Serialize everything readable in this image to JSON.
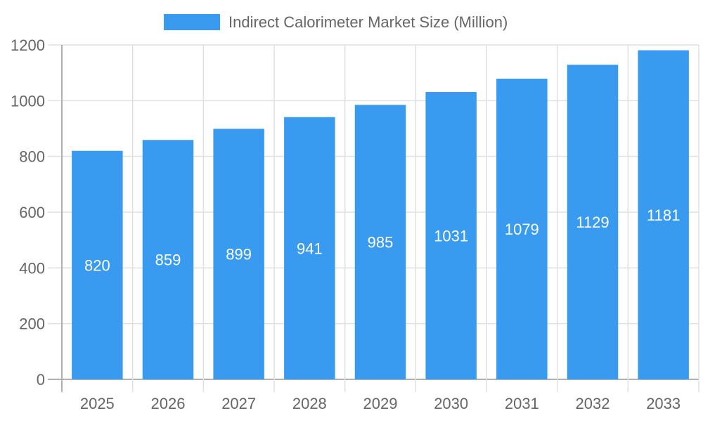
{
  "chart_data": {
    "type": "bar",
    "title": "",
    "xlabel": "",
    "ylabel": "",
    "categories": [
      "2025",
      "2026",
      "2027",
      "2028",
      "2029",
      "2030",
      "2031",
      "2032",
      "2033"
    ],
    "series": [
      {
        "name": "Indirect Calorimeter Market Size (Million)",
        "values": [
          820,
          859,
          899,
          941,
          985,
          1031,
          1079,
          1129,
          1181
        ],
        "color": "#389bef"
      }
    ],
    "ylim": [
      0,
      1200
    ],
    "yticks": [
      0,
      200,
      400,
      600,
      800,
      1000,
      1200
    ],
    "grid": true,
    "legend": "top",
    "data_labels": true
  }
}
